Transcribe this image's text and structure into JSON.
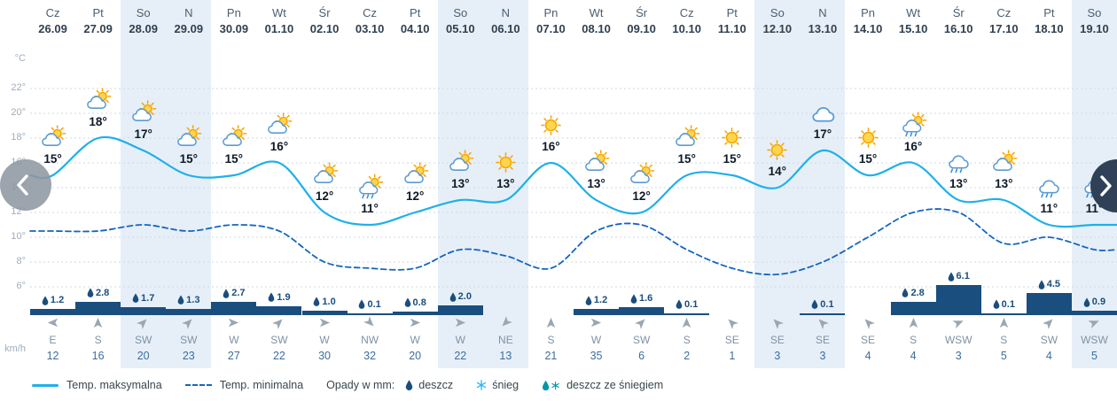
{
  "colors": {
    "temp_max_line": "#1fb0e8",
    "temp_min_line": "#1565c0",
    "precip_bar": "#1a4e7e",
    "weekend_stripe": "#e6eff8"
  },
  "y_axis": {
    "unit_top": "°C",
    "ticks": [
      "22°",
      "20°",
      "18°",
      "16°",
      "14°",
      "12°",
      "10°",
      "8°",
      "6°"
    ],
    "unit_bottom": "km/h"
  },
  "columns": [
    {
      "day": "Cz",
      "date": "26.09",
      "icon": "sun-cloud",
      "temp_label": "15°",
      "temp_max": 15,
      "temp_min": 10.5,
      "precip_label": "1.2",
      "precip_mm": 1.2,
      "wind_dir": "E",
      "wind_kmh": 12
    },
    {
      "day": "Pt",
      "date": "27.09",
      "icon": "sun-cloud",
      "temp_label": "18°",
      "temp_max": 18,
      "temp_min": 10.5,
      "precip_label": "2.8",
      "precip_mm": 2.8,
      "wind_dir": "S",
      "wind_kmh": 16
    },
    {
      "day": "So",
      "date": "28.09",
      "icon": "sun-cloud",
      "temp_label": "17°",
      "temp_max": 17,
      "temp_min": 11,
      "precip_label": "1.7",
      "precip_mm": 1.7,
      "wind_dir": "SW",
      "wind_kmh": 20
    },
    {
      "day": "N",
      "date": "29.09",
      "icon": "sun-cloud",
      "temp_label": "15°",
      "temp_max": 15,
      "temp_min": 10.5,
      "precip_label": "1.3",
      "precip_mm": 1.3,
      "wind_dir": "SW",
      "wind_kmh": 23
    },
    {
      "day": "Pn",
      "date": "30.09",
      "icon": "sun-cloud",
      "temp_label": "15°",
      "temp_max": 15,
      "temp_min": 11,
      "precip_label": "2.7",
      "precip_mm": 2.7,
      "wind_dir": "W",
      "wind_kmh": 27
    },
    {
      "day": "Wt",
      "date": "01.10",
      "icon": "sun-cloud",
      "temp_label": "16°",
      "temp_max": 16,
      "temp_min": 10.5,
      "precip_label": "1.9",
      "precip_mm": 1.9,
      "wind_dir": "SW",
      "wind_kmh": 22
    },
    {
      "day": "Śr",
      "date": "02.10",
      "icon": "sun-cloud",
      "temp_label": "12°",
      "temp_max": 12,
      "temp_min": 8,
      "precip_label": "1.0",
      "precip_mm": 1.0,
      "wind_dir": "W",
      "wind_kmh": 30
    },
    {
      "day": "Cz",
      "date": "03.10",
      "icon": "sun-cloud-rain",
      "temp_label": "11°",
      "temp_max": 11,
      "temp_min": 7.5,
      "precip_label": "0.1",
      "precip_mm": 0.1,
      "wind_dir": "NW",
      "wind_kmh": 32
    },
    {
      "day": "Pt",
      "date": "04.10",
      "icon": "sun-cloud",
      "temp_label": "12°",
      "temp_max": 12,
      "temp_min": 7.5,
      "precip_label": "0.8",
      "precip_mm": 0.8,
      "wind_dir": "W",
      "wind_kmh": 20
    },
    {
      "day": "So",
      "date": "05.10",
      "icon": "sun-cloud",
      "temp_label": "13°",
      "temp_max": 13,
      "temp_min": 9,
      "precip_label": "2.0",
      "precip_mm": 2.0,
      "wind_dir": "W",
      "wind_kmh": 22
    },
    {
      "day": "N",
      "date": "06.10",
      "icon": "sun",
      "temp_label": "13°",
      "temp_max": 13,
      "temp_min": 8.5,
      "precip_label": null,
      "precip_mm": null,
      "wind_dir": "NE",
      "wind_kmh": 13
    },
    {
      "day": "Pn",
      "date": "07.10",
      "icon": "sun",
      "temp_label": "16°",
      "temp_max": 16,
      "temp_min": 7.5,
      "precip_label": null,
      "precip_mm": null,
      "wind_dir": "S",
      "wind_kmh": 21
    },
    {
      "day": "Wt",
      "date": "08.10",
      "icon": "sun-cloud",
      "temp_label": "13°",
      "temp_max": 13,
      "temp_min": 10.5,
      "precip_label": "1.2",
      "precip_mm": 1.2,
      "wind_dir": "W",
      "wind_kmh": 35
    },
    {
      "day": "Śr",
      "date": "09.10",
      "icon": "sun-cloud",
      "temp_label": "12°",
      "temp_max": 12,
      "temp_min": 11,
      "precip_label": "1.6",
      "precip_mm": 1.6,
      "wind_dir": "SW",
      "wind_kmh": 6
    },
    {
      "day": "Cz",
      "date": "10.10",
      "icon": "sun-cloud",
      "temp_label": "15°",
      "temp_max": 15,
      "temp_min": 9,
      "precip_label": "0.1",
      "precip_mm": 0.1,
      "wind_dir": "S",
      "wind_kmh": 2
    },
    {
      "day": "Pt",
      "date": "11.10",
      "icon": "sun",
      "temp_label": "15°",
      "temp_max": 15,
      "temp_min": 7.5,
      "precip_label": null,
      "precip_mm": null,
      "wind_dir": "SE",
      "wind_kmh": 1
    },
    {
      "day": "So",
      "date": "12.10",
      "icon": "sun",
      "temp_label": "14°",
      "temp_max": 14,
      "temp_min": 7,
      "precip_label": null,
      "precip_mm": null,
      "wind_dir": "SE",
      "wind_kmh": 3
    },
    {
      "day": "N",
      "date": "13.10",
      "icon": "cloud",
      "temp_label": "17°",
      "temp_max": 17,
      "temp_min": 8,
      "precip_label": "0.1",
      "precip_mm": 0.1,
      "wind_dir": "SE",
      "wind_kmh": 3
    },
    {
      "day": "Pn",
      "date": "14.10",
      "icon": "sun",
      "temp_label": "15°",
      "temp_max": 15,
      "temp_min": 10,
      "precip_label": null,
      "precip_mm": null,
      "wind_dir": "SE",
      "wind_kmh": 4
    },
    {
      "day": "Wt",
      "date": "15.10",
      "icon": "sun-cloud-rain",
      "temp_label": "16°",
      "temp_max": 16,
      "temp_min": 12,
      "precip_label": "2.8",
      "precip_mm": 2.8,
      "wind_dir": "S",
      "wind_kmh": 4
    },
    {
      "day": "Śr",
      "date": "16.10",
      "icon": "cloud-rain",
      "temp_label": "13°",
      "temp_max": 13,
      "temp_min": 12,
      "precip_label": "6.1",
      "precip_mm": 6.1,
      "wind_dir": "WSW",
      "wind_kmh": 3
    },
    {
      "day": "Cz",
      "date": "17.10",
      "icon": "sun-cloud",
      "temp_label": "13°",
      "temp_max": 13,
      "temp_min": 9.5,
      "precip_label": "0.1",
      "precip_mm": 0.1,
      "wind_dir": "S",
      "wind_kmh": 5
    },
    {
      "day": "Pt",
      "date": "18.10",
      "icon": "cloud-rain",
      "temp_label": "11°",
      "temp_max": 11,
      "temp_min": 10,
      "precip_label": "4.5",
      "precip_mm": 4.5,
      "wind_dir": "SW",
      "wind_kmh": 4
    },
    {
      "day": "So",
      "date": "19.10",
      "icon": "cloud-rain",
      "temp_label": "11°",
      "temp_max": 11,
      "temp_min": 9,
      "precip_label": "0.9",
      "precip_mm": 0.9,
      "wind_dir": "WSW",
      "wind_kmh": 5
    }
  ],
  "legend": {
    "max_label": "Temp. maksymalna",
    "min_label": "Temp. minimalna",
    "precip_label": "Opady w mm:",
    "rain_label": "deszcz",
    "snow_label": "śnieg",
    "rain_snow_label": "deszcz ze śniegiem"
  },
  "chart_data": {
    "type": "line",
    "categories": [
      "Cz 26.09",
      "Pt 27.09",
      "So 28.09",
      "N 29.09",
      "Pn 30.09",
      "Wt 01.10",
      "Śr 02.10",
      "Cz 03.10",
      "Pt 04.10",
      "So 05.10",
      "N 06.10",
      "Pn 07.10",
      "Wt 08.10",
      "Śr 09.10",
      "Cz 10.10",
      "Pt 11.10",
      "So 12.10",
      "N 13.10",
      "Pn 14.10",
      "Wt 15.10",
      "Śr 16.10",
      "Cz 17.10",
      "Pt 18.10",
      "So 19.10"
    ],
    "series": [
      {
        "name": "Temp. maksymalna",
        "type": "line",
        "unit": "°C",
        "values": [
          15,
          18,
          17,
          15,
          15,
          16,
          12,
          11,
          12,
          13,
          13,
          16,
          13,
          12,
          15,
          15,
          14,
          17,
          15,
          16,
          13,
          13,
          11,
          11
        ]
      },
      {
        "name": "Temp. minimalna",
        "type": "line",
        "style": "dashed",
        "unit": "°C",
        "values": [
          10.5,
          10.5,
          11,
          10.5,
          11,
          10.5,
          8,
          7.5,
          7.5,
          9,
          8.5,
          7.5,
          10.5,
          11,
          9,
          7.5,
          7,
          8,
          10,
          12,
          12,
          9.5,
          10,
          9
        ]
      },
      {
        "name": "Opady w mm",
        "type": "bar",
        "unit": "mm",
        "values": [
          1.2,
          2.8,
          1.7,
          1.3,
          2.7,
          1.9,
          1.0,
          0.1,
          0.8,
          2.0,
          null,
          null,
          1.2,
          1.6,
          0.1,
          null,
          null,
          0.1,
          null,
          2.8,
          6.1,
          0.1,
          4.5,
          0.9
        ]
      },
      {
        "name": "Kierunek wiatru",
        "type": "table",
        "values": [
          "E",
          "S",
          "SW",
          "SW",
          "W",
          "SW",
          "W",
          "NW",
          "W",
          "W",
          "NE",
          "S",
          "W",
          "SW",
          "S",
          "SE",
          "SE",
          "SE",
          "SE",
          "S",
          "WSW",
          "S",
          "SW",
          "WSW"
        ]
      },
      {
        "name": "Prędkość wiatru",
        "type": "table",
        "unit": "km/h",
        "values": [
          12,
          16,
          20,
          23,
          27,
          22,
          30,
          32,
          20,
          22,
          13,
          21,
          35,
          6,
          2,
          1,
          3,
          3,
          4,
          4,
          3,
          5,
          4,
          5
        ]
      }
    ],
    "ylabel": "°C",
    "ylim": [
      5,
      23
    ],
    "grid": true,
    "legend_position": "bottom"
  }
}
